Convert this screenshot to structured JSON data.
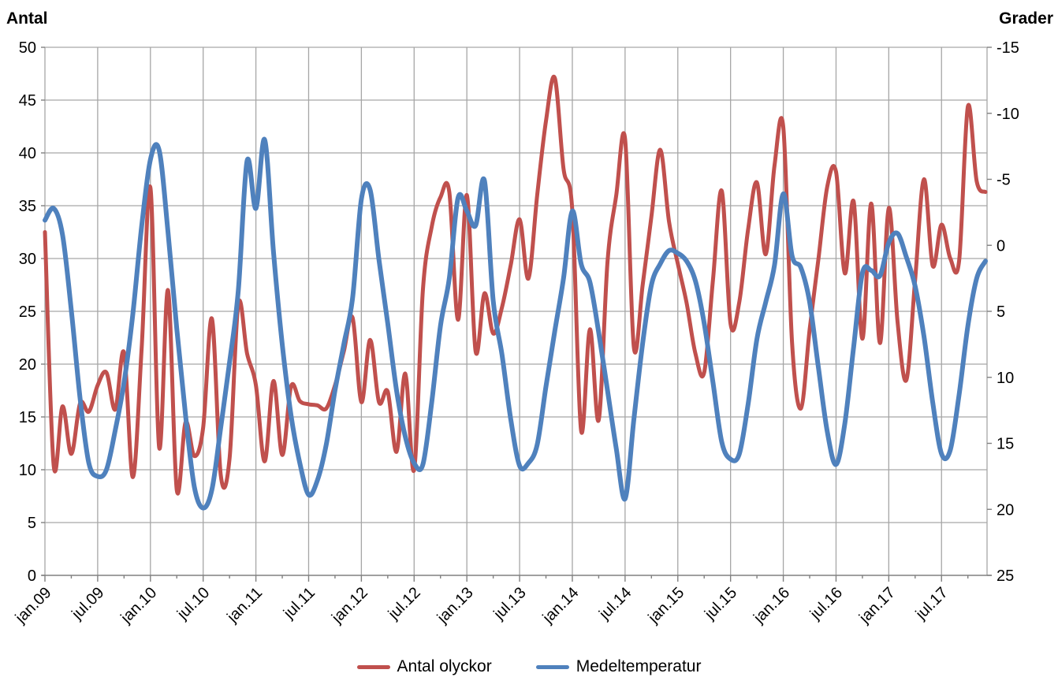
{
  "chart_data": {
    "type": "line",
    "title": "",
    "ylabel_left": "Antal",
    "ylabel_right": "Grader",
    "month_count": 108,
    "x_start": "jan.09",
    "x_end": "dec.17",
    "x_tick_labels": [
      "jan.09",
      "jul.09",
      "jan.10",
      "jul.10",
      "jan.11",
      "jul.11",
      "jan.12",
      "jul.12",
      "jan.13",
      "jul.13",
      "jan.14",
      "jul.14",
      "jan.15",
      "jul.15",
      "jan.16",
      "jul.16",
      "jan.17",
      "jul.17"
    ],
    "x_tick_month_indices": [
      0,
      6,
      12,
      18,
      24,
      30,
      36,
      42,
      48,
      54,
      60,
      66,
      72,
      78,
      84,
      90,
      96,
      102
    ],
    "y_left_axis": {
      "min": 0,
      "max": 50,
      "step": 5,
      "ticks_top_to_bottom": [
        "50",
        "45",
        "40",
        "35",
        "30",
        "25",
        "20",
        "15",
        "10",
        "5",
        "0"
      ]
    },
    "y_right_axis": {
      "min": -15,
      "max": 25,
      "step": 5,
      "inverted": true,
      "ticks_top_to_bottom": [
        "-15",
        "-10",
        "-5",
        "0",
        "5",
        "10",
        "15",
        "20",
        "25"
      ]
    },
    "grid": true,
    "grid_color": "#A6A6A6",
    "axis_color": "#808080",
    "legend_position": "bottom",
    "legend": [
      {
        "label": "Antal olyckor",
        "color": "#C0504D"
      },
      {
        "label": "Medeltemperatur",
        "color": "#4F81BD"
      }
    ],
    "series": [
      {
        "name": "Antal olyckor",
        "axis": "left",
        "color": "#C0504D",
        "stroke_width": 5,
        "values": [
          32.5,
          10.4,
          16,
          11.5,
          16.3,
          15.5,
          18,
          19.2,
          15.7,
          21.1,
          9.3,
          21.4,
          36.7,
          12.1,
          27,
          8.1,
          14.5,
          11.3,
          14,
          24.3,
          9.5,
          11,
          25.7,
          21,
          18,
          10.8,
          18.4,
          11.4,
          17.9,
          16.5,
          16.2,
          16.1,
          15.8,
          18,
          21.2,
          24.4,
          16.4,
          22.3,
          16.4,
          17.4,
          11.7,
          19.1,
          10,
          27,
          33,
          35.8,
          36.3,
          24.2,
          36,
          21.2,
          26.7,
          22.9,
          25.4,
          29.4,
          33.7,
          28.1,
          36,
          43,
          47.1,
          38.5,
          34.5,
          13.7,
          23.3,
          14.7,
          29.7,
          36,
          41.3,
          21.6,
          27.5,
          34,
          40.3,
          33.5,
          29.5,
          25.8,
          21,
          19.2,
          28,
          36.4,
          23.8,
          25.9,
          32.8,
          37.2,
          30.4,
          38.8,
          42.4,
          22,
          15.8,
          23.3,
          30,
          36.8,
          38.2,
          28.6,
          35.4,
          22.4,
          35.2,
          22,
          34.8,
          24,
          18.5,
          28,
          37.5,
          29.3,
          33.2,
          30,
          29.8,
          44.4,
          37.3,
          36.3
        ]
      },
      {
        "name": "Medeltemperatur",
        "axis": "right",
        "color": "#4F81BD",
        "stroke_width": 6,
        "values": [
          -1.9,
          -2.8,
          -0.8,
          4.9,
          11.6,
          16.5,
          17.5,
          17,
          14,
          10.4,
          5.2,
          -1.4,
          -6.5,
          -7.2,
          -1,
          6.3,
          12.9,
          18.3,
          19.9,
          18.5,
          13.8,
          8.9,
          3.4,
          -6.4,
          -2.8,
          -8,
          0.5,
          7.5,
          12.9,
          16.5,
          18.9,
          17.8,
          15.1,
          11,
          7.5,
          4,
          -3.5,
          -4.2,
          1.1,
          5.9,
          11,
          14.5,
          16.5,
          16.6,
          11.9,
          6.1,
          2.5,
          -3.6,
          -2.6,
          -1.5,
          -4.9,
          4.2,
          8.3,
          13.2,
          16.7,
          16.5,
          15.1,
          10.7,
          6.5,
          2.5,
          -2.6,
          1.4,
          2.8,
          6.6,
          11,
          15.4,
          19.2,
          13.2,
          7.4,
          3,
          1.4,
          0.4,
          0.6,
          1.2,
          2.7,
          5.9,
          10.4,
          14.9,
          16.2,
          15.8,
          12,
          7.1,
          4.3,
          1.5,
          -3.9,
          0.8,
          1.7,
          4.3,
          9.3,
          14.1,
          16.6,
          13.5,
          7.7,
          2.1,
          1.9,
          2.3,
          -0.2,
          -0.9,
          0.9,
          3.1,
          6.9,
          11.9,
          15.8,
          15.5,
          11.3,
          6.1,
          2.5,
          1.2
        ]
      }
    ]
  }
}
